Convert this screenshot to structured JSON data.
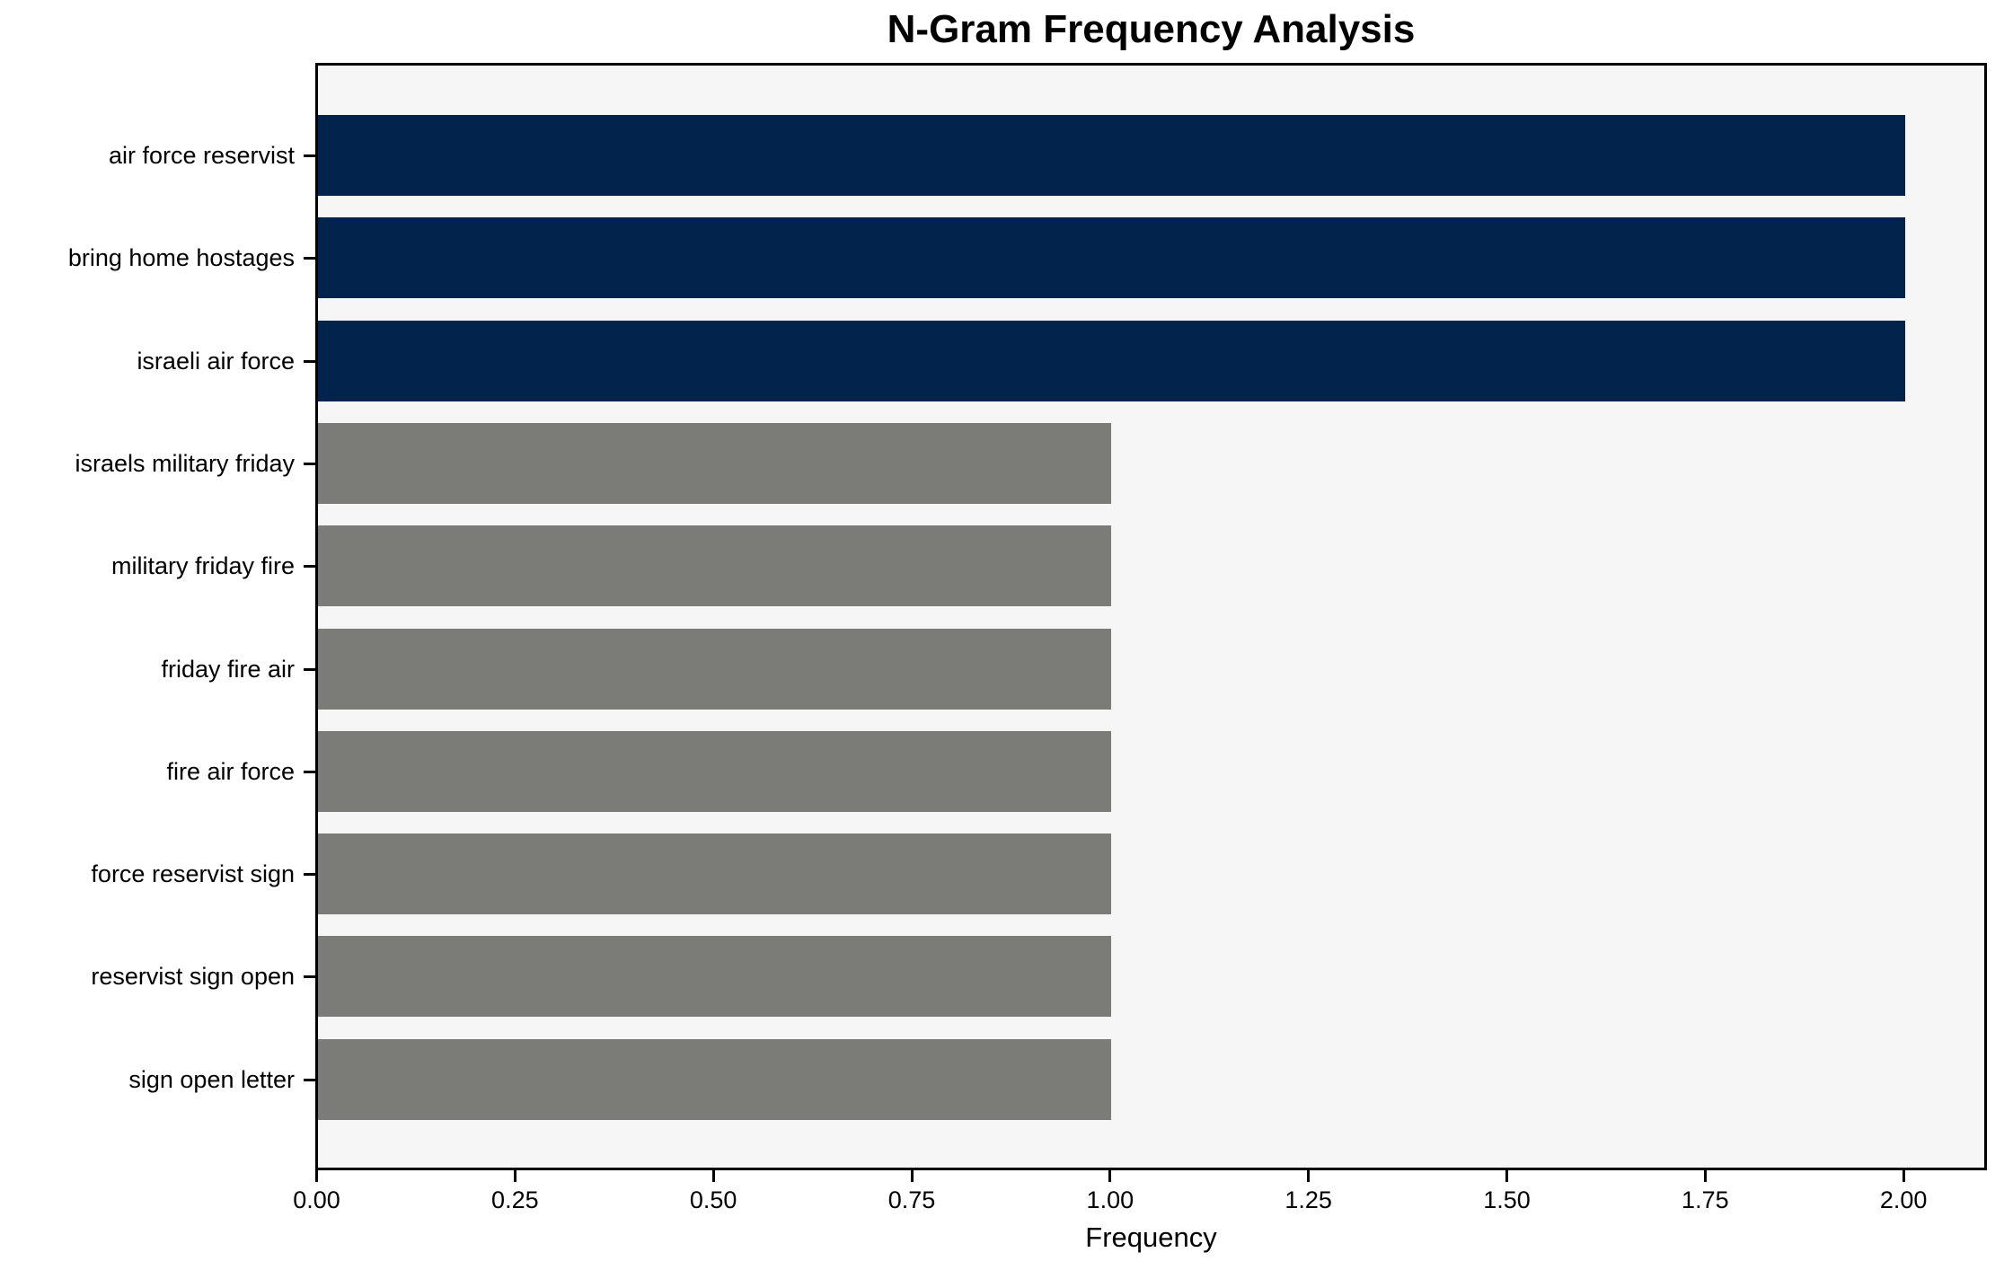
{
  "chart_data": {
    "type": "bar",
    "orientation": "horizontal",
    "title": "N-Gram Frequency Analysis",
    "xlabel": "Frequency",
    "ylabel": "",
    "categories": [
      "air force reservist",
      "bring home hostages",
      "israeli air force",
      "israels military friday",
      "military friday fire",
      "friday fire air",
      "fire air force",
      "force reservist sign",
      "reservist sign open",
      "sign open letter"
    ],
    "values": [
      2,
      2,
      2,
      1,
      1,
      1,
      1,
      1,
      1,
      1
    ],
    "bar_colors": [
      "#02234b",
      "#02234b",
      "#02234b",
      "#7b7b77",
      "#7b7b77",
      "#7b7b77",
      "#7b7b77",
      "#7b7b77",
      "#7b7b77",
      "#7b7b77"
    ],
    "xlim": [
      0,
      2.1
    ],
    "xtick_values": [
      0,
      0.25,
      0.5,
      0.75,
      1.0,
      1.25,
      1.5,
      1.75,
      2.0
    ],
    "xtick_labels": [
      "0.00",
      "0.25",
      "0.50",
      "0.75",
      "1.00",
      "1.25",
      "1.50",
      "1.75",
      "2.00"
    ],
    "grid": false,
    "legend": null,
    "colors": {
      "high_frequency_bar": "#02234b",
      "low_frequency_bar": "#7b7b77",
      "plot_background": "#f5f6f5",
      "figure_background": "#ffffff",
      "spine": "#000000",
      "text": "#000000"
    }
  }
}
